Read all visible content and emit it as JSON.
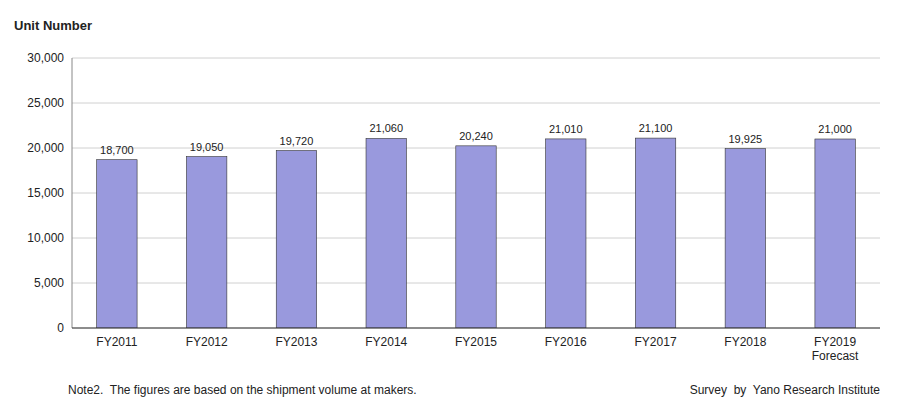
{
  "chart_data": {
    "type": "bar",
    "ylabel": "Unit Number",
    "categories": [
      "FY2011",
      "FY2012",
      "FY2013",
      "FY2014",
      "FY2015",
      "FY2016",
      "FY2017",
      "FY2018",
      "FY2019\nForecast"
    ],
    "values": [
      18700,
      19050,
      19720,
      21060,
      20240,
      21010,
      21100,
      19925,
      21000
    ],
    "value_labels": [
      "18,700",
      "19,050",
      "19,720",
      "21,060",
      "20,240",
      "21,010",
      "21,100",
      "19,925",
      "21,000"
    ],
    "data_labels": true,
    "color": "#9999dd",
    "ylim": [
      0,
      30000
    ],
    "yticks": [
      0,
      {
        "value": 5000,
        "label": "5,000"
      },
      {
        "value": 10000,
        "label": "10,000"
      },
      {
        "value": 15000,
        "label": "15,000"
      },
      {
        "value": 20000,
        "label": "20,000"
      },
      {
        "value": 25000,
        "label": "25,000"
      },
      {
        "value": 30000,
        "label": "30,000"
      }
    ],
    "grid": true,
    "note": "Note2.  The figures are based on the shipment volume at makers.",
    "source": "Survey  by  Yano Research Institute"
  }
}
